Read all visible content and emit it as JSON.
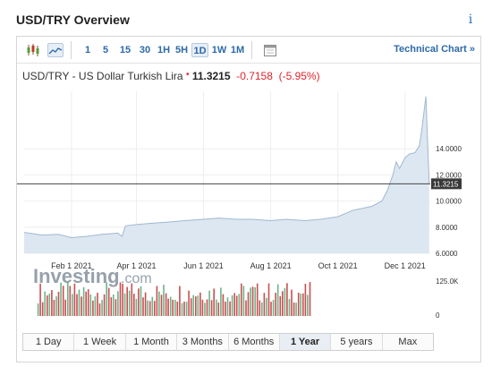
{
  "header": {
    "title": "USD/TRY Overview",
    "info_icon": "info-icon"
  },
  "toolbar": {
    "icons": [
      "candlestick-icon",
      "line-chart-icon",
      "calendar-icon"
    ],
    "intervals": [
      "1",
      "5",
      "15",
      "30",
      "1H",
      "5H",
      "1D",
      "1W",
      "1M"
    ],
    "active_interval": "1D",
    "technical_chart_label": "Technical Chart »"
  },
  "quote": {
    "name": "USD/TRY - US Dollar Turkish Lira",
    "price": "11.3215",
    "change": "-0.7158",
    "change_pct": "(-5.95%)"
  },
  "watermark": {
    "brand": "Investing",
    "suffix": ".com"
  },
  "colors": {
    "accent": "#2c6aa8",
    "negative": "#e0232a",
    "area_fill": "#dde7f1",
    "line": "#9fb8d0",
    "vol_up": "#6db38a",
    "vol_down": "#c8504f"
  },
  "chart_data": {
    "type": "area",
    "x": [
      "2020-12-20",
      "2021-01-05",
      "2021-01-20",
      "2021-02-01",
      "2021-02-15",
      "2021-03-01",
      "2021-03-15",
      "2021-03-19",
      "2021-03-22",
      "2021-04-01",
      "2021-04-15",
      "2021-05-01",
      "2021-05-15",
      "2021-06-01",
      "2021-06-15",
      "2021-07-01",
      "2021-07-15",
      "2021-08-01",
      "2021-08-15",
      "2021-09-01",
      "2021-09-15",
      "2021-10-01",
      "2021-10-15",
      "2021-11-01",
      "2021-11-10",
      "2021-11-15",
      "2021-11-20",
      "2021-11-23",
      "2021-11-26",
      "2021-12-01",
      "2021-12-05",
      "2021-12-10",
      "2021-12-14",
      "2021-12-16",
      "2021-12-20",
      "2021-12-23"
    ],
    "values": [
      7.6,
      7.4,
      7.45,
      7.2,
      7.3,
      7.45,
      7.55,
      7.3,
      8.1,
      8.2,
      8.3,
      8.4,
      8.5,
      8.6,
      8.7,
      8.6,
      8.6,
      8.5,
      8.6,
      8.5,
      8.6,
      8.8,
      9.3,
      9.6,
      10.0,
      10.8,
      12.0,
      13.0,
      12.5,
      13.3,
      13.6,
      13.7,
      14.2,
      15.3,
      18.0,
      11.32
    ],
    "y_ticks": [
      "6.0000",
      "8.0000",
      "10.0000",
      "12.0000",
      "14.0000"
    ],
    "x_ticks": [
      "Feb 1 2021",
      "Apr 1 2021",
      "Jun 1 2021",
      "Aug 1 2021",
      "Oct 1 2021",
      "Dec 1 2021"
    ],
    "ylim": [
      6.0,
      18.4
    ],
    "last_value_label": "11.3215",
    "volume_ticks": [
      "125.0K",
      "0"
    ],
    "grid": true
  },
  "periods": [
    "1 Day",
    "1 Week",
    "1 Month",
    "3 Months",
    "6 Months",
    "1 Year",
    "5 years",
    "Max"
  ],
  "active_period": "1 Year"
}
